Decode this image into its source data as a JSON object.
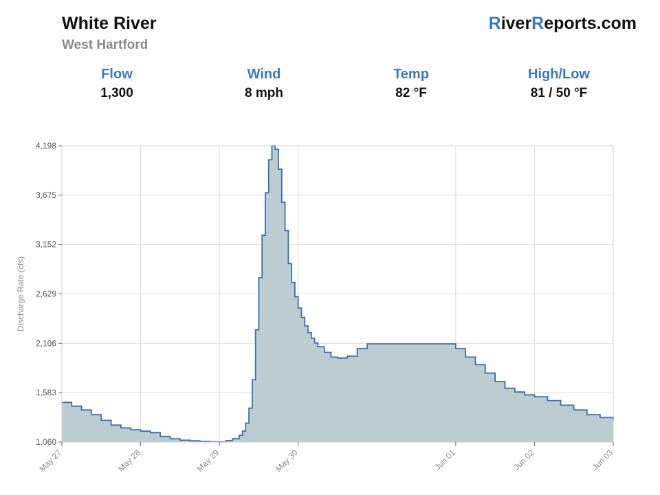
{
  "header": {
    "river": "White River",
    "location": "West Hartford",
    "brand": {
      "p1": "R",
      "p2": "iver",
      "p3": "R",
      "p4": "eports.com"
    }
  },
  "stats": [
    {
      "label": "Flow",
      "value": "1,300"
    },
    {
      "label": "Wind",
      "value": "8 mph"
    },
    {
      "label": "Temp",
      "value": "82 °F"
    },
    {
      "label": "High/Low",
      "value": "81 / 50 °F"
    }
  ],
  "colors": {
    "accent": "#3d77bd",
    "line": "#3a6db5",
    "fill": "#bccdd1",
    "grid": "#dcdcdc"
  },
  "chart_data": {
    "type": "area",
    "step": true,
    "ylabel": "Discharge Rate (cfs)",
    "ylim": [
      1060,
      4198
    ],
    "yticks": [
      1060,
      1583,
      2106,
      2629,
      3152,
      3675,
      4198
    ],
    "ytick_labels": [
      "1,060",
      "1,583",
      "2,106",
      "2,629",
      "3,152",
      "3,675",
      "4,198"
    ],
    "xlim": [
      "May 27 00:00",
      "Jun 03 00:00"
    ],
    "xticks": [
      {
        "label": "May 27",
        "t": "May 27 00:00"
      },
      {
        "label": "May 28",
        "t": "May 28 00:00"
      },
      {
        "label": "May 29",
        "t": "May 29 00:00"
      },
      {
        "label": "May 30",
        "t": "May 30 00:00"
      },
      {
        "label": "Jun 01",
        "t": "Jun 01 00:00"
      },
      {
        "label": "Jun 02",
        "t": "Jun 02 00:00"
      },
      {
        "label": "Jun 03",
        "t": "Jun 03 00:00"
      }
    ],
    "grid": true,
    "series": [
      {
        "x": [
          "May 27 00:00",
          "May 27 03:00",
          "May 27 06:00",
          "May 27 09:00",
          "May 27 12:00",
          "May 27 15:00",
          "May 27 18:00",
          "May 27 21:00",
          "May 28 00:00",
          "May 28 03:00",
          "May 28 06:00",
          "May 28 09:00",
          "May 28 12:00",
          "May 28 15:00",
          "May 28 18:00",
          "May 28 21:00",
          "May 29 00:00",
          "May 29 02:00",
          "May 29 04:00",
          "May 29 06:00",
          "May 29 07:00",
          "May 29 08:00",
          "May 29 09:00",
          "May 29 10:00",
          "May 29 11:00",
          "May 29 12:00",
          "May 29 13:00",
          "May 29 14:00",
          "May 29 15:00",
          "May 29 16:00",
          "May 29 17:00",
          "May 29 18:00",
          "May 29 19:00",
          "May 29 20:00",
          "May 29 21:00",
          "May 29 22:00",
          "May 29 23:00",
          "May 30 00:00",
          "May 30 01:00",
          "May 30 02:00",
          "May 30 03:00",
          "May 30 04:00",
          "May 30 05:00",
          "May 30 06:00",
          "May 30 08:00",
          "May 30 10:00",
          "May 30 12:00",
          "May 30 15:00",
          "May 30 18:00",
          "May 30 21:00",
          "Jun 01 00:00",
          "Jun 01 03:00",
          "Jun 01 06:00",
          "Jun 01 09:00",
          "Jun 01 12:00",
          "Jun 01 15:00",
          "Jun 01 18:00",
          "Jun 01 21:00",
          "Jun 02 00:00",
          "Jun 02 04:00",
          "Jun 02 08:00",
          "Jun 02 12:00",
          "Jun 02 16:00",
          "Jun 02 20:00",
          "Jun 03 00:00"
        ],
        "values": [
          1480,
          1440,
          1400,
          1350,
          1290,
          1240,
          1210,
          1190,
          1175,
          1160,
          1120,
          1095,
          1080,
          1073,
          1068,
          1064,
          1062,
          1075,
          1095,
          1130,
          1175,
          1260,
          1420,
          1720,
          2250,
          2800,
          3250,
          3700,
          4050,
          4198,
          4160,
          3950,
          3600,
          3300,
          2950,
          2750,
          2600,
          2480,
          2380,
          2290,
          2220,
          2160,
          2110,
          2070,
          2010,
          1960,
          1950,
          1970,
          2050,
          2100,
          2050,
          1960,
          1880,
          1790,
          1700,
          1630,
          1590,
          1560,
          1540,
          1500,
          1450,
          1400,
          1350,
          1320,
          1290
        ]
      }
    ]
  }
}
